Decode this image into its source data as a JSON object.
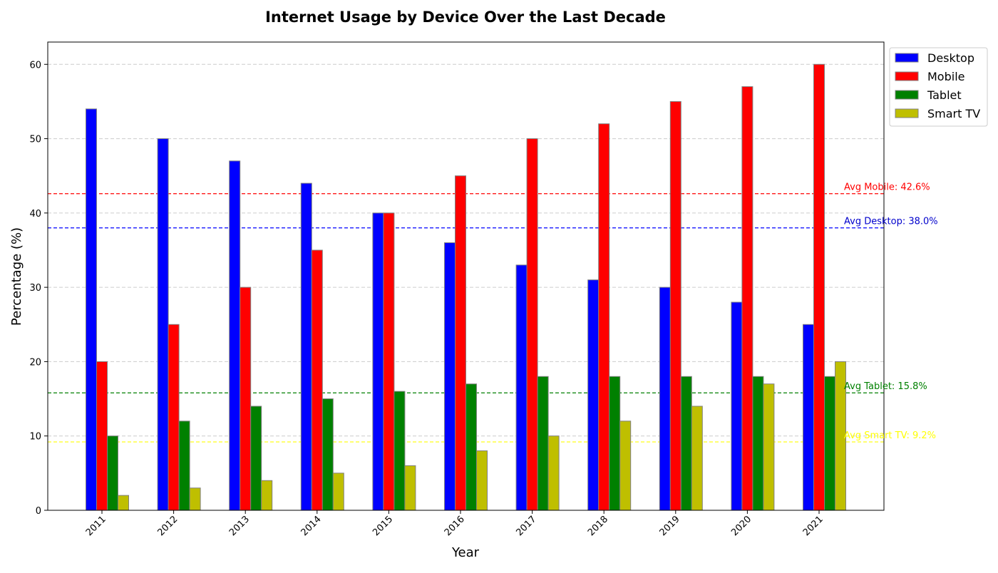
{
  "chart_data": {
    "type": "bar",
    "title": "Internet Usage by Device Over the Last Decade",
    "xlabel": "Year",
    "ylabel": "Percentage (%)",
    "ylim": [
      0,
      63
    ],
    "yticks": [
      0,
      10,
      20,
      30,
      40,
      50,
      60
    ],
    "grid": "y-dashed",
    "legend_position": "top-right-outside",
    "categories": [
      "2011",
      "2012",
      "2013",
      "2014",
      "2015",
      "2016",
      "2017",
      "2018",
      "2019",
      "2020",
      "2021"
    ],
    "series": [
      {
        "name": "Desktop",
        "color": "#0000ff",
        "values": [
          54,
          50,
          47,
          44,
          40,
          36,
          33,
          31,
          30,
          28,
          25
        ]
      },
      {
        "name": "Mobile",
        "color": "#ff0000",
        "values": [
          20,
          25,
          30,
          35,
          40,
          45,
          50,
          52,
          55,
          57,
          60
        ]
      },
      {
        "name": "Tablet",
        "color": "#008000",
        "values": [
          10,
          12,
          14,
          15,
          16,
          17,
          18,
          18,
          18,
          18,
          18
        ]
      },
      {
        "name": "Smart TV",
        "color": "#bfbf00",
        "values": [
          2,
          3,
          4,
          5,
          6,
          8,
          10,
          12,
          14,
          17,
          20
        ]
      }
    ],
    "annotations": [
      {
        "text": "Avg Mobile: 42.6%",
        "value": 42.6,
        "color": "#ff0000"
      },
      {
        "text": "Avg Desktop: 38.0%",
        "value": 38.0,
        "color": "#0000cc"
      },
      {
        "text": "Avg Tablet: 15.8%",
        "value": 15.8,
        "color": "#008000"
      },
      {
        "text": "Avg Smart TV: 9.2%",
        "value": 9.2,
        "color": "#ffff00"
      }
    ]
  }
}
